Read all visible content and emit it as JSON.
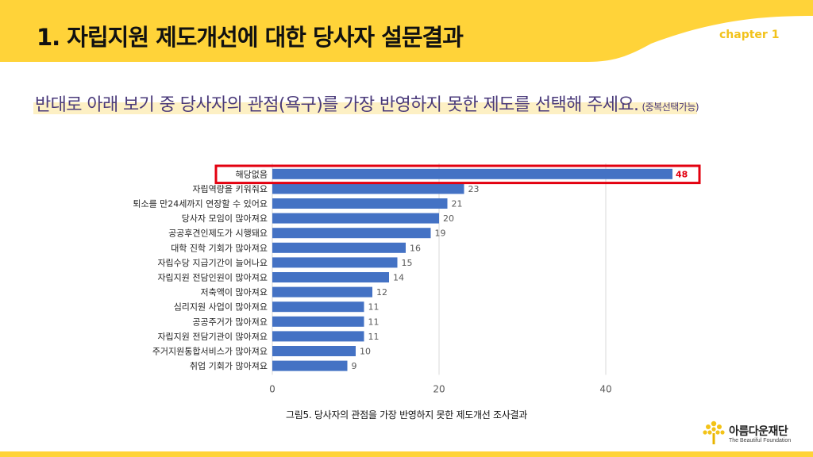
{
  "header": {
    "title": "1. 자립지원 제도개선에 대한 당사자 설문결과",
    "chapter": "chapter 1"
  },
  "question": {
    "text": "반대로 아래 보기 중 당사자의 관점(욕구)를 가장 반영하지 못한 제도를 선택해 주세요.",
    "note": "(중복선택가능)"
  },
  "chart_data": {
    "type": "bar",
    "orientation": "horizontal",
    "categories": [
      "해당없음",
      "자립역량을 키워줘요",
      "퇴소를 만24세까지 연장할 수 있어요",
      "당사자 모임이 많아져요",
      "공공후견인제도가 시행돼요",
      "대학 진학 기회가 많아져요",
      "자립수당 지급기간이 늘어나요",
      "자립지원 전담인원이 많아져요",
      "저축액이 많아져요",
      "심리지원 사업이 많아져요",
      "공공주거가 많아져요",
      "자립지원 전담기관이 많아져요",
      "주거지원통합서비스가 많아져요",
      "취업 기회가 많아져요"
    ],
    "values": [
      48,
      23,
      21,
      20,
      19,
      16,
      15,
      14,
      12,
      11,
      11,
      11,
      10,
      9
    ],
    "value_labels": [
      "48",
      "23",
      "21",
      "20",
      "19",
      "16",
      "15",
      "14",
      "12",
      "11",
      "11",
      "11",
      "10",
      "9"
    ],
    "xlim": [
      0,
      50
    ],
    "x_ticks": [
      0,
      20,
      40
    ],
    "x_tick_labels": [
      "0",
      "20",
      "40"
    ],
    "grid": true,
    "highlight_index": 0,
    "colors": {
      "bar": "#4472c4",
      "highlight_box": "#e3000f",
      "highlight_label": "#e3000f",
      "grid": "#d9d9d9",
      "value_label": "#595959"
    },
    "caption": "그림5. 당사자의 관점을 가장 반영하지 못한 제도개선 조사결과"
  },
  "brand": {
    "name": "아름다운재단",
    "sub": "The Beautiful Foundation",
    "logo_icon": "tree-icon"
  },
  "theme": {
    "accent": "#ffd339",
    "chapter_color": "#f2c21b",
    "question_color": "#4a3a7a",
    "question_highlight": "#fdf0c4"
  }
}
